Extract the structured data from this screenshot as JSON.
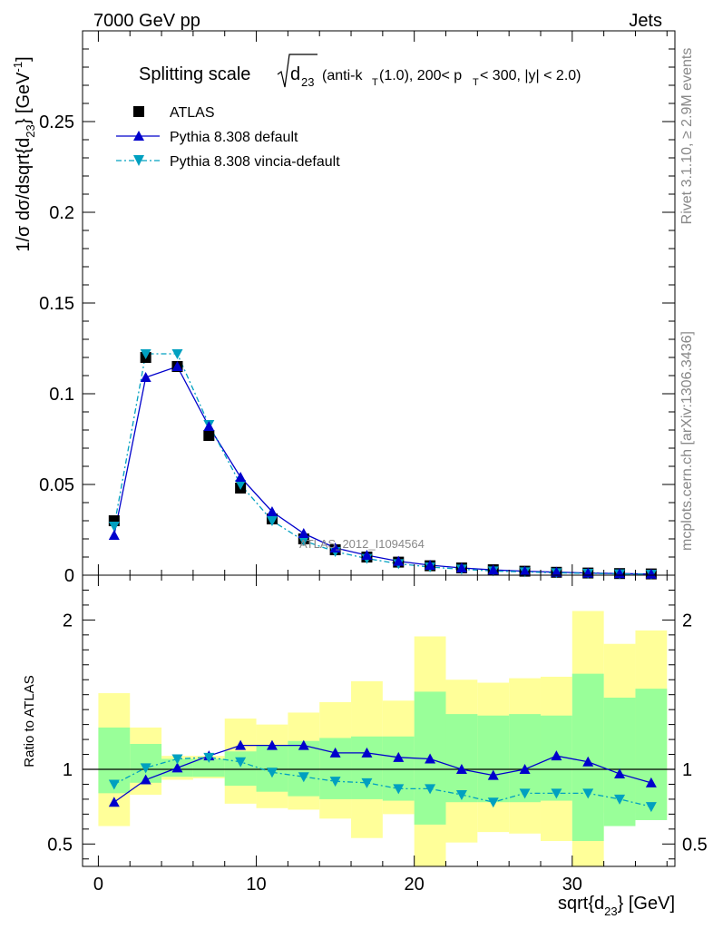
{
  "header": {
    "left": "7000 GeV pp",
    "right": "Jets",
    "rivet": "Rivet 3.1.10, ≥ 2.9M events",
    "mcplots": "mcplots.cern.ch [arXiv:1306.3436]"
  },
  "main_plot": {
    "title_prefix": "Splitting scale",
    "title_symbol": "d",
    "title_sub": "23",
    "title_suffix": "(anti-k",
    "title_sub2": "T",
    "title_suffix2": "(1.0), 200< p",
    "title_sub3": "T",
    "title_suffix3": " < 300, |y| < 2.0)",
    "ylabel": "1/σ dσ/dsqrt{d",
    "ylabel_sub": "23",
    "ylabel_end": "} [GeV",
    "ylabel_sup": "-1",
    "ylabel_close": "]",
    "watermark": "ATLAS_2012_I1094564"
  },
  "ratio_plot": {
    "ylabel": "Ratio to ATLAS"
  },
  "xaxis": {
    "label": "sqrt{d",
    "label_sub": "23",
    "label_end": "} [GeV]"
  },
  "legend": [
    {
      "label": "ATLAS",
      "marker": "square",
      "color": "#000000"
    },
    {
      "label": "Pythia 8.308 default",
      "marker": "triangle-up",
      "color": "#0000cc"
    },
    {
      "label": "Pythia 8.308 vincia-default",
      "marker": "triangle-down",
      "color": "#00a0c0"
    }
  ],
  "chart_data": {
    "type": "line",
    "x": [
      1,
      3,
      5,
      7,
      9,
      11,
      13,
      15,
      17,
      19,
      21,
      23,
      25,
      27,
      29,
      31,
      33,
      35
    ],
    "xlim": [
      -1,
      36.5
    ],
    "xticks": [
      0,
      10,
      20,
      30
    ],
    "main": {
      "ylim": [
        0,
        0.3
      ],
      "yticks": [
        0,
        0.05,
        0.1,
        0.15,
        0.2,
        0.25
      ],
      "yticklabels": [
        "0",
        "0.05",
        "0.1",
        "0.15",
        "0.2",
        "0.25"
      ],
      "series": [
        {
          "name": "ATLAS",
          "color": "#000000",
          "marker": "square",
          "values": [
            0.03,
            0.12,
            0.115,
            0.077,
            0.048,
            0.031,
            0.02,
            0.014,
            0.01,
            0.0072,
            0.0052,
            0.004,
            0.003,
            0.0022,
            0.0016,
            0.0012,
            0.0009,
            0.0007
          ]
        },
        {
          "name": "Pythia 8.308 default",
          "color": "#0000cc",
          "marker": "triangle-up",
          "style": "solid",
          "values": [
            0.022,
            0.109,
            0.115,
            0.082,
            0.054,
            0.035,
            0.023,
            0.015,
            0.011,
            0.0077,
            0.0055,
            0.004,
            0.0029,
            0.0022,
            0.0017,
            0.0012,
            0.0009,
            0.0006
          ]
        },
        {
          "name": "Pythia 8.308 vincia-default",
          "color": "#00a0c0",
          "marker": "triangle-down",
          "style": "dashdot",
          "values": [
            0.027,
            0.122,
            0.122,
            0.083,
            0.05,
            0.03,
            0.019,
            0.013,
            0.0092,
            0.0063,
            0.0045,
            0.0033,
            0.0023,
            0.0018,
            0.0013,
            0.001,
            0.0007,
            0.0005
          ]
        }
      ]
    },
    "ratio": {
      "ylim": [
        0.35,
        2.3
      ],
      "yticks": [
        0.5,
        1,
        2
      ],
      "yticklabels": [
        "0.5",
        "1",
        "2"
      ],
      "bins": [
        [
          0,
          2
        ],
        [
          2,
          4
        ],
        [
          4,
          6
        ],
        [
          6,
          8
        ],
        [
          8,
          10
        ],
        [
          10,
          12
        ],
        [
          12,
          14
        ],
        [
          14,
          16
        ],
        [
          16,
          18
        ],
        [
          18,
          20
        ],
        [
          20,
          22
        ],
        [
          22,
          24
        ],
        [
          24,
          26
        ],
        [
          26,
          28
        ],
        [
          28,
          30
        ],
        [
          30,
          32
        ],
        [
          32,
          34
        ],
        [
          34,
          36
        ]
      ],
      "green_band": [
        [
          0.84,
          1.28
        ],
        [
          0.91,
          1.17
        ],
        [
          0.95,
          1.07
        ],
        [
          0.95,
          1.07
        ],
        [
          0.89,
          1.12
        ],
        [
          0.85,
          1.16
        ],
        [
          0.82,
          1.19
        ],
        [
          0.8,
          1.21
        ],
        [
          0.8,
          1.22
        ],
        [
          0.79,
          1.22
        ],
        [
          0.63,
          1.52
        ],
        [
          0.78,
          1.37
        ],
        [
          0.78,
          1.36
        ],
        [
          0.78,
          1.37
        ],
        [
          0.79,
          1.36
        ],
        [
          0.52,
          1.64
        ],
        [
          0.62,
          1.48
        ],
        [
          0.66,
          1.54
        ]
      ],
      "yellow_band": [
        [
          0.62,
          1.51
        ],
        [
          0.83,
          1.28
        ],
        [
          0.93,
          1.09
        ],
        [
          0.94,
          1.09
        ],
        [
          0.77,
          1.34
        ],
        [
          0.74,
          1.3
        ],
        [
          0.73,
          1.38
        ],
        [
          0.67,
          1.45
        ],
        [
          0.54,
          1.59
        ],
        [
          0.7,
          1.46
        ],
        [
          0.35,
          1.89
        ],
        [
          0.51,
          1.6
        ],
        [
          0.58,
          1.58
        ],
        [
          0.57,
          1.61
        ],
        [
          0.52,
          1.62
        ],
        [
          0.35,
          2.06
        ],
        [
          0.71,
          1.84
        ],
        [
          0.68,
          1.93
        ]
      ],
      "series": [
        {
          "name": "Pythia 8.308 default",
          "color": "#0000cc",
          "marker": "triangle-up",
          "style": "solid",
          "values": [
            0.78,
            0.93,
            1.01,
            1.09,
            1.16,
            1.16,
            1.16,
            1.11,
            1.11,
            1.08,
            1.07,
            1.0,
            0.96,
            1.0,
            1.09,
            1.05,
            0.97,
            0.91
          ]
        },
        {
          "name": "Pythia 8.308 vincia-default",
          "color": "#00a0c0",
          "marker": "triangle-down",
          "style": "dashdot",
          "values": [
            0.9,
            1.01,
            1.07,
            1.08,
            1.05,
            0.98,
            0.95,
            0.92,
            0.91,
            0.87,
            0.87,
            0.83,
            0.78,
            0.84,
            0.84,
            0.84,
            0.8,
            0.75
          ]
        }
      ]
    }
  }
}
